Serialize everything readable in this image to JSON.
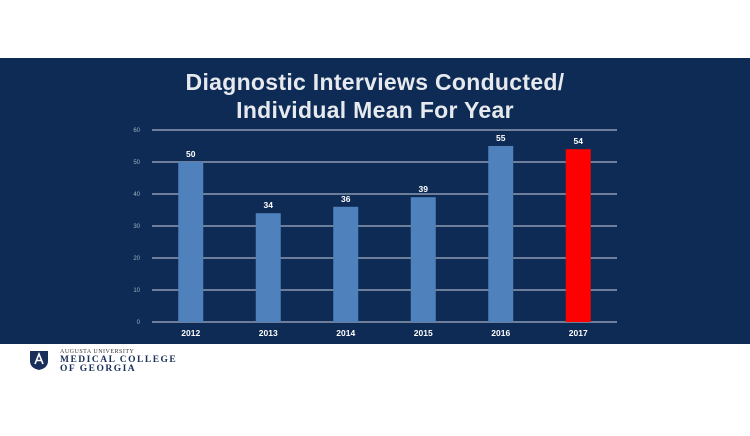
{
  "slide": {
    "title_line1": "Diagnostic Interviews Conducted/",
    "title_line2": "Individual Mean For Year"
  },
  "chart_data": {
    "type": "bar",
    "categories": [
      "2012",
      "2013",
      "2014",
      "2015",
      "2016",
      "2017"
    ],
    "values": [
      50,
      34,
      36,
      39,
      55,
      54
    ],
    "data_labels": [
      "50",
      "34",
      "36",
      "39",
      "55",
      "54"
    ],
    "ylim": [
      0,
      60
    ],
    "yticks": [
      "0",
      "10",
      "20",
      "30",
      "40",
      "50",
      "60"
    ],
    "grid": true,
    "bar_colors": [
      "#4f81bd",
      "#4f81bd",
      "#4f81bd",
      "#4f81bd",
      "#4f81bd",
      "#ff0000"
    ],
    "background": "#0e2b55",
    "text_color": "#ffffff",
    "title": "Diagnostic Interviews Conducted/ Individual Mean For Year"
  },
  "footer": {
    "university": "AUGUSTA UNIVERSITY",
    "college_line1": "MEDICAL COLLEGE",
    "college_line2": "OF GEORGIA",
    "logo_icon": "shield-seal-icon"
  }
}
